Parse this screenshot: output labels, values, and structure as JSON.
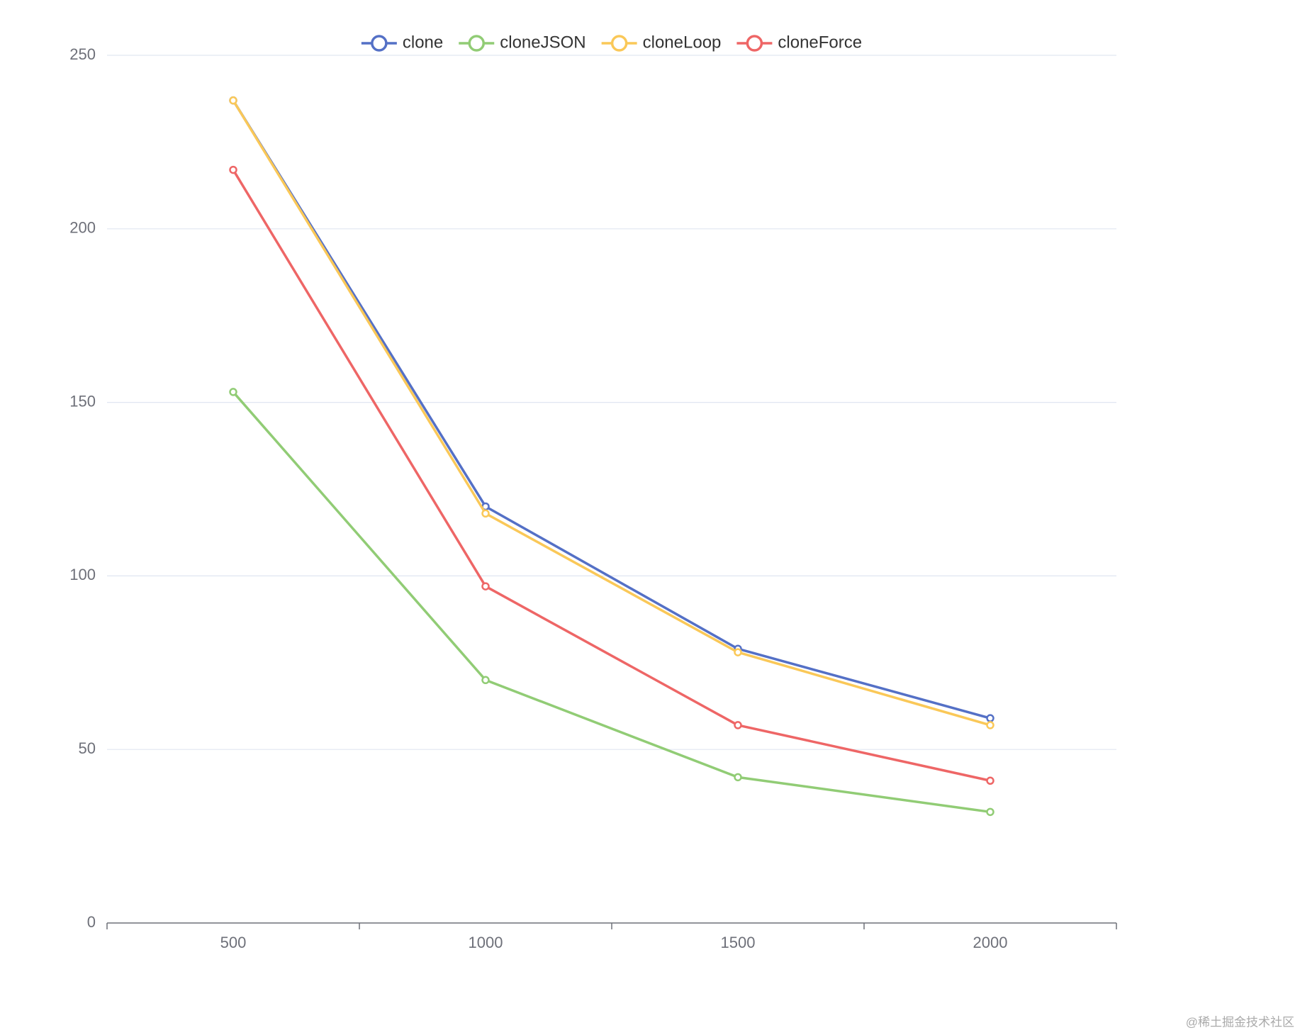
{
  "chart_data": {
    "type": "line",
    "categories": [
      "500",
      "1000",
      "1500",
      "2000"
    ],
    "series": [
      {
        "name": "clone",
        "color": "#5470c6",
        "values": [
          237,
          120,
          79,
          59
        ]
      },
      {
        "name": "cloneJSON",
        "color": "#91cc75",
        "values": [
          153,
          70,
          42,
          32
        ]
      },
      {
        "name": "cloneLoop",
        "color": "#fac858",
        "values": [
          237,
          118,
          78,
          57
        ]
      },
      {
        "name": "cloneForce",
        "color": "#ee6666",
        "values": [
          217,
          97,
          57,
          41
        ]
      }
    ],
    "ylim": [
      0,
      250
    ],
    "yticks": [
      0,
      50,
      100,
      150,
      200,
      250
    ],
    "grid": true,
    "legend": "top",
    "watermark": "@稀土掘金技术社区"
  }
}
